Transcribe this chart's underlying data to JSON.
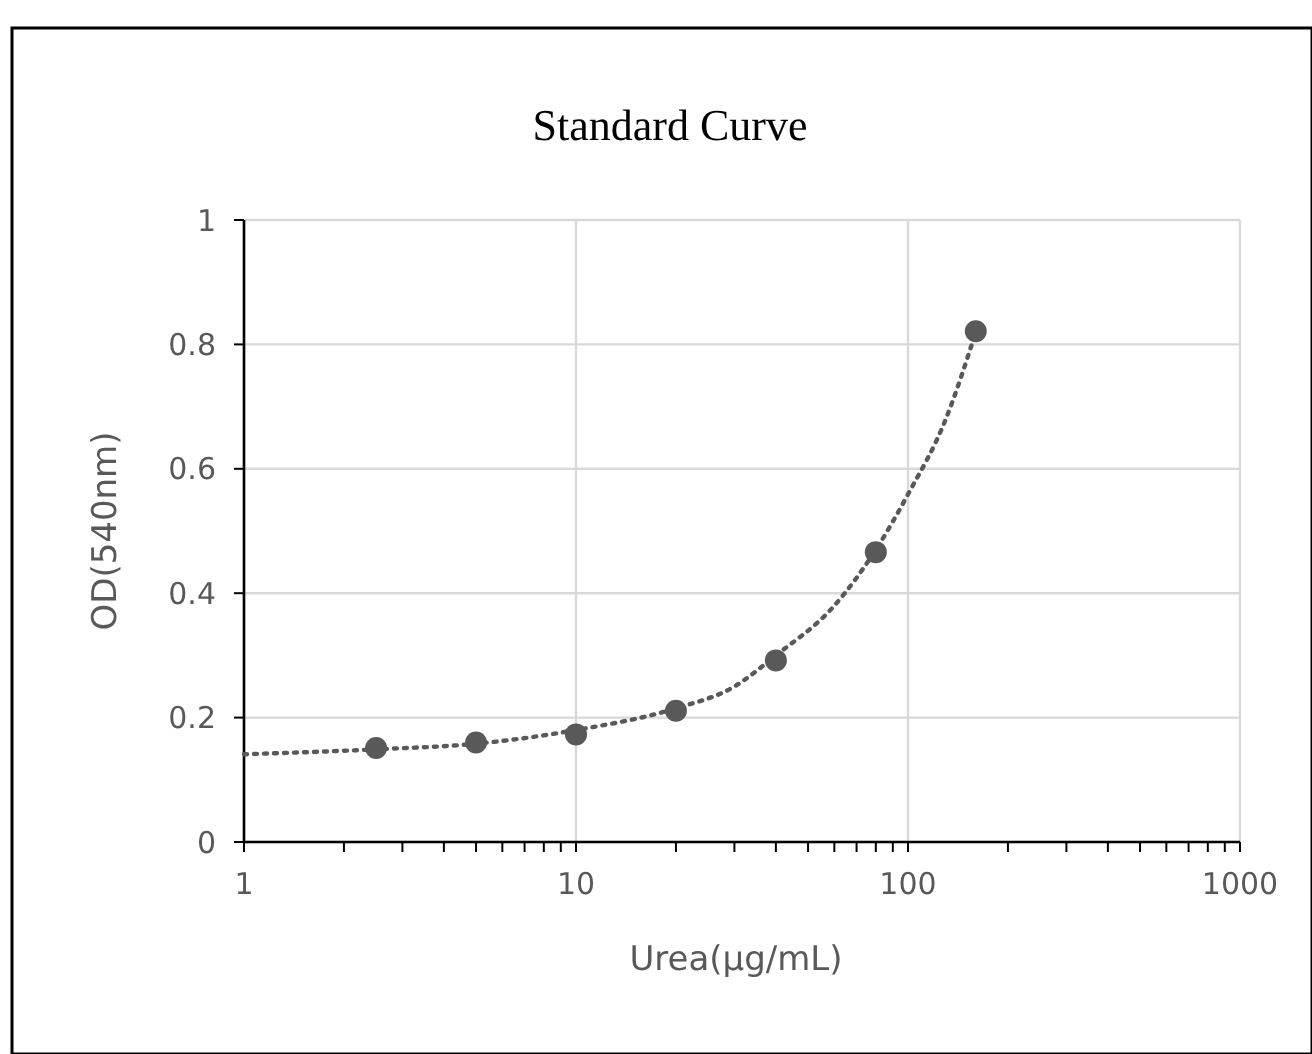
{
  "chart_data": {
    "type": "scatter",
    "title": "Standard Curve",
    "xlabel": "Urea(μg/mL)",
    "ylabel": "OD(540nm)",
    "log": "x",
    "grid": true,
    "marker": "circle",
    "xlim": [
      1,
      1000
    ],
    "xticks": [
      1,
      {
        "value": 2,
        "label": null
      },
      {
        "value": 3,
        "label": null
      },
      {
        "value": 4,
        "label": null
      },
      {
        "value": 5,
        "label": null
      },
      {
        "value": 6,
        "label": null
      },
      {
        "value": 7,
        "label": null
      },
      {
        "value": 8,
        "label": null
      },
      {
        "value": 9,
        "label": null
      },
      10,
      {
        "value": 20,
        "label": null
      },
      {
        "value": 30,
        "label": null
      },
      {
        "value": 40,
        "label": null
      },
      {
        "value": 50,
        "label": null
      },
      {
        "value": 60,
        "label": null
      },
      {
        "value": 70,
        "label": null
      },
      {
        "value": 80,
        "label": null
      },
      {
        "value": 90,
        "label": null
      },
      100,
      {
        "value": 200,
        "label": null
      },
      {
        "value": 300,
        "label": null
      },
      {
        "value": 400,
        "label": null
      },
      {
        "value": 500,
        "label": null
      },
      {
        "value": 600,
        "label": null
      },
      {
        "value": 700,
        "label": null
      },
      {
        "value": 800,
        "label": null
      },
      {
        "value": 900,
        "label": null
      },
      1000
    ],
    "ylim": [
      0,
      1
    ],
    "yticks": [
      0,
      0.2,
      0.4,
      0.6,
      0.8,
      1
    ],
    "series": [
      {
        "color": "#595959",
        "x": [
          2.5,
          5,
          10,
          20,
          40,
          80,
          160
        ],
        "values": [
          0.151,
          0.16,
          0.173,
          0.211,
          0.292,
          0.466,
          0.821
        ]
      },
      {
        "type": "line",
        "color": "#595959",
        "marker": "none",
        "line_style": "dotted",
        "x": [
          1,
          2.5,
          5,
          10,
          20,
          30,
          40,
          60,
          80,
          100,
          130,
          160
        ],
        "values": [
          0.141,
          0.149,
          0.158,
          0.18,
          0.215,
          0.25,
          0.3,
          0.38,
          0.47,
          0.559,
          0.68,
          0.82
        ]
      }
    ]
  }
}
